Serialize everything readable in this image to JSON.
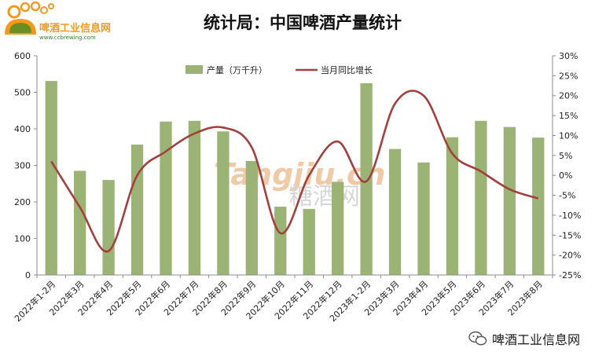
{
  "logo": {
    "name": "啤酒工业信息网",
    "url": "www.ccbrewing.com"
  },
  "watermark": {
    "latin": "Tangjiu.cn",
    "chinese": "糖酒网"
  },
  "footer": {
    "icon": "wechat-icon",
    "account": "啤酒工业信息网"
  },
  "colors": {
    "bar": "#9bb374",
    "line": "#a4403c",
    "watermark": "#e5a060",
    "logo_orange": "#f39a1e"
  },
  "chart_data": {
    "type": "bar",
    "title": "统计局：中国啤酒产量统计",
    "xlabel": "",
    "categories": [
      "2022年1-2月",
      "2022年3月",
      "2022年4月",
      "2022年5月",
      "2022年6月",
      "2022年7月",
      "2022年8月",
      "2022年9月",
      "2022年10月",
      "2022年11月",
      "2022年12月",
      "2023年1-2月",
      "2023年3月",
      "2023年4月",
      "2023年5月",
      "2023年6月",
      "2023年7月",
      "2023年8月"
    ],
    "series": [
      {
        "name": "产量（万千升）",
        "type": "bar",
        "axis": "left",
        "values": [
          531,
          285,
          260,
          357,
          420,
          422,
          393,
          312,
          187,
          181,
          255,
          525,
          345,
          308,
          377,
          422,
          405,
          376
        ]
      },
      {
        "name": "当月同比增长",
        "type": "line",
        "axis": "right",
        "unit": "%",
        "values": [
          3.5,
          -8,
          -19,
          0,
          6,
          10.5,
          12,
          7,
          -14.5,
          0,
          8.5,
          -1.5,
          18,
          20,
          5.5,
          1,
          -3.5,
          -5.8
        ]
      }
    ],
    "y_left": {
      "min": 0,
      "max": 600,
      "step": 100,
      "tick_labels": [
        "0",
        "100",
        "200",
        "300",
        "400",
        "500",
        "600"
      ]
    },
    "y_right": {
      "min": -25,
      "max": 30,
      "step": 5,
      "tick_labels": [
        "-25%",
        "-20%",
        "-15%",
        "-10%",
        "-5%",
        "0%",
        "5%",
        "10%",
        "15%",
        "20%",
        "25%",
        "30%"
      ]
    },
    "grid": false,
    "legend": "top-center"
  }
}
